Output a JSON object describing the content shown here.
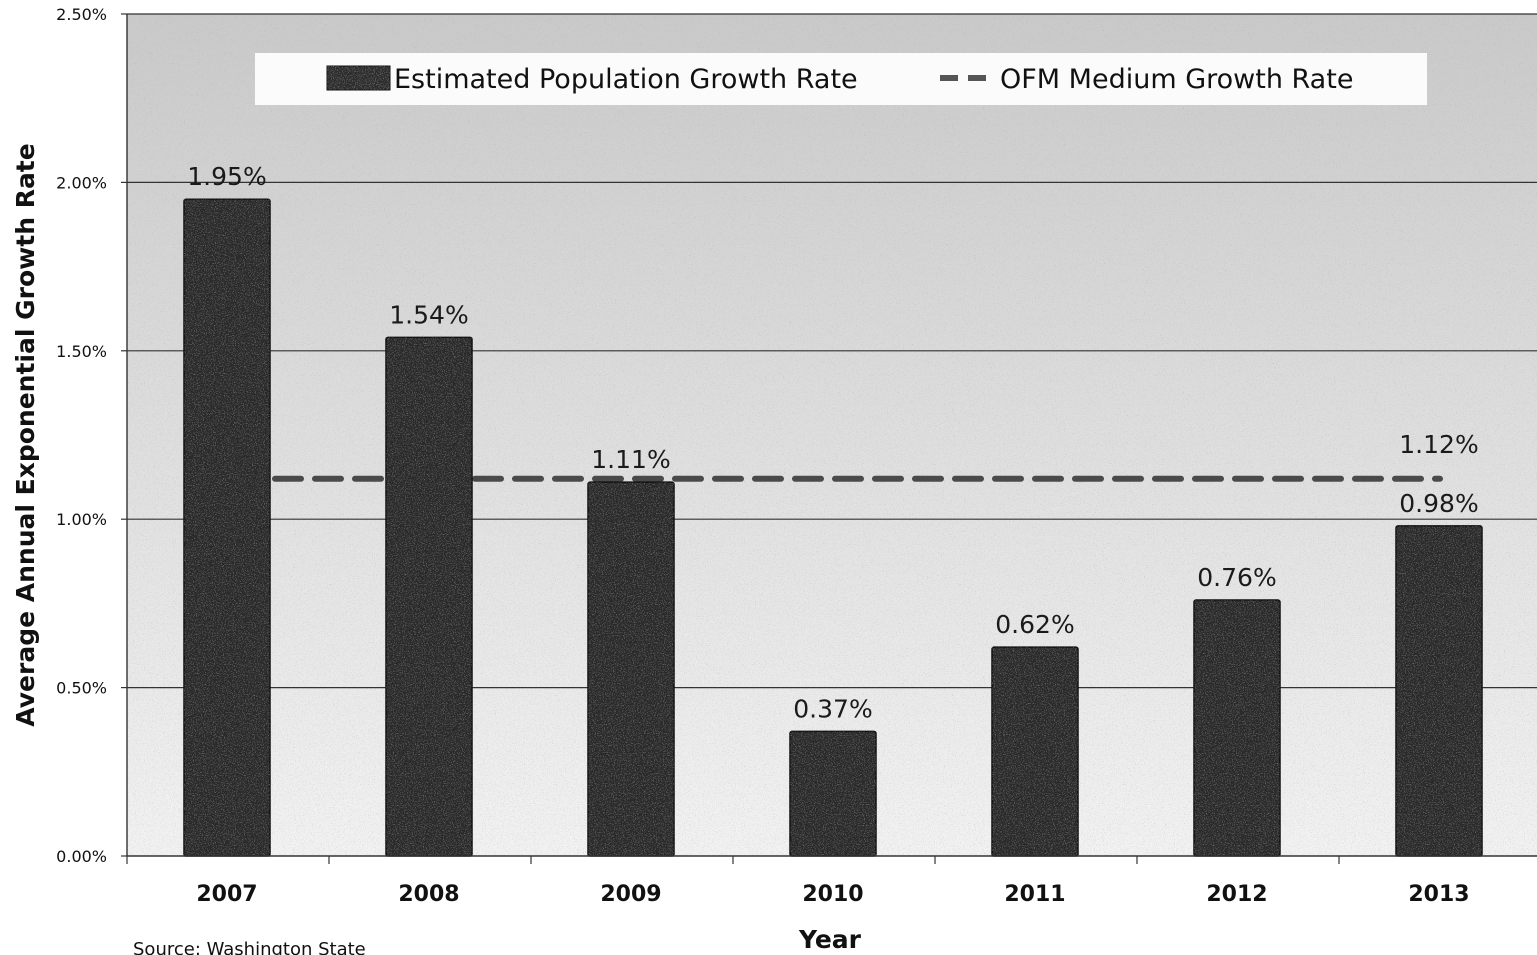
{
  "chart_data": {
    "type": "bar",
    "categories": [
      "2007",
      "2008",
      "2009",
      "2010",
      "2011",
      "2012",
      "2013"
    ],
    "series": [
      {
        "name": "Estimated Population Growth Rate",
        "values": [
          1.95,
          1.54,
          1.11,
          0.37,
          0.62,
          0.76,
          0.98
        ],
        "labels": [
          "1.95%",
          "1.54%",
          "1.11%",
          "0.37%",
          "0.62%",
          "0.76%",
          "0.98%"
        ],
        "color": "#2b2b2b"
      },
      {
        "name": "OFM Medium Growth Rate",
        "kind": "dashed-line",
        "values": [
          1.12,
          1.12,
          1.12,
          1.12,
          1.12,
          1.12,
          1.12
        ],
        "label": "1.12%",
        "color": "#4a4a4a"
      }
    ],
    "title": "",
    "xlabel": "Year",
    "ylabel": "Average Annual Exponential Growth Rate",
    "ylim": [
      0,
      2.5
    ],
    "yticks": [
      "0.00%",
      "0.50%",
      "1.00%",
      "1.50%",
      "2.00%",
      "2.50%"
    ],
    "grid": true,
    "legend_position": "top"
  },
  "source_note": "Source: Washington State"
}
